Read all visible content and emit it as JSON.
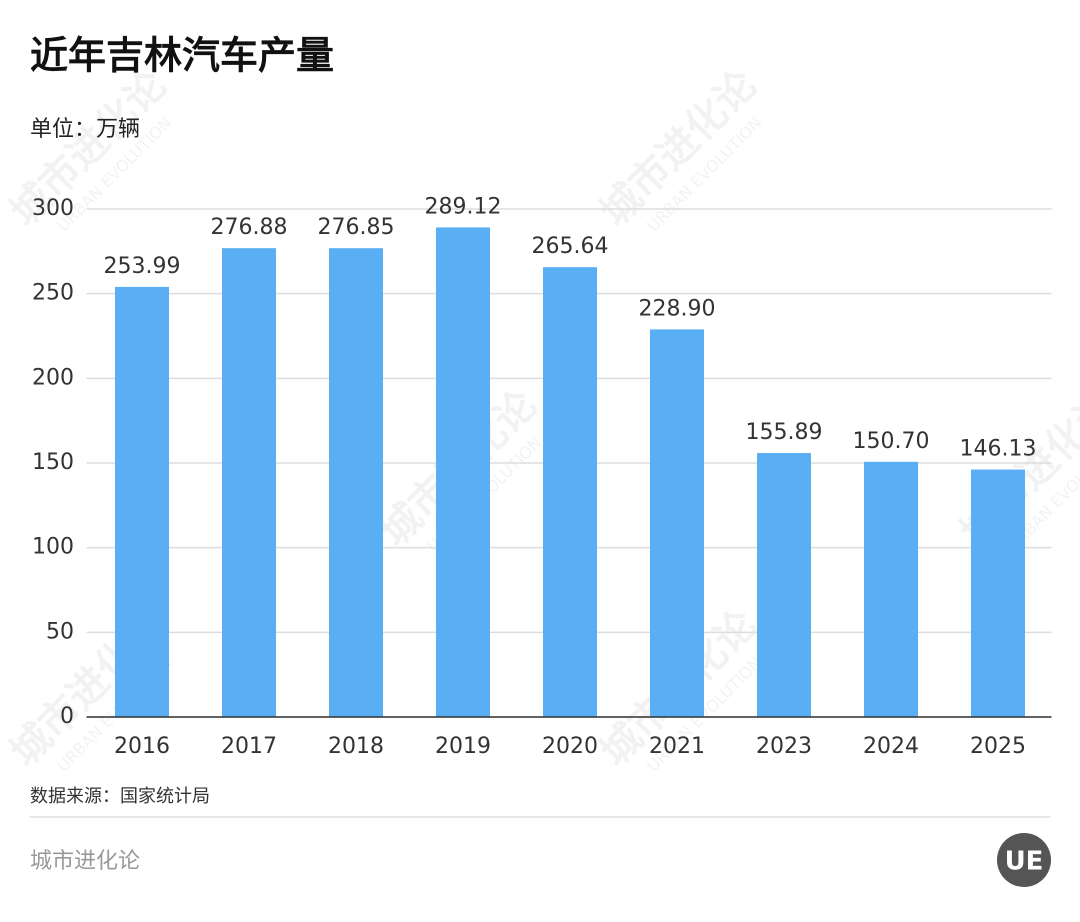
{
  "chart_data": {
    "type": "bar",
    "title": "近年吉林汽车产量",
    "subtitle": "单位：万辆",
    "source": "数据来源：国家统计局",
    "footer": "城市进化论",
    "watermark": "城市进化论",
    "watermark_en": "URBAN EVOLUTION",
    "logo": "UE",
    "categories": [
      "2016",
      "2017",
      "2018",
      "2019",
      "2020",
      "2021",
      "2023",
      "2024",
      "2025"
    ],
    "values": [
      253.99,
      276.88,
      276.85,
      289.12,
      265.64,
      228.9,
      155.89,
      150.7,
      146.13
    ],
    "value_labels": [
      "253.99",
      "276.88",
      "276.85",
      "289.12",
      "265.64",
      "228.90",
      "155.89",
      "150.70",
      "146.13"
    ],
    "color": "#5aaef3",
    "ylim": [
      0,
      300
    ],
    "yticks": [
      0,
      50,
      100,
      150,
      200,
      250,
      300
    ],
    "grid": true
  }
}
